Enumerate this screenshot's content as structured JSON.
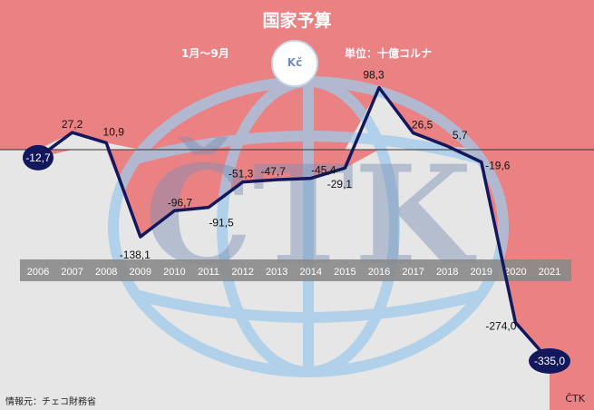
{
  "header": {
    "title": "国家予算",
    "period": "1月～9月",
    "unit": "単位：十億コルナ",
    "coin_symbol": "Kč"
  },
  "footer": {
    "source": "情報元：チェコ財務省",
    "credit": "ČTK"
  },
  "watermark": "ČTK",
  "colors": {
    "positive_area": "#ea8284",
    "negative_area": "#e6e6e6",
    "line": "#13185c",
    "axis_band": "#8a8a8a",
    "globe": "#9ecbea"
  },
  "chart_data": {
    "type": "line",
    "title": "国家予算",
    "x": [
      "2006",
      "2007",
      "2008",
      "2009",
      "2010",
      "2011",
      "2012",
      "2013",
      "2014",
      "2015",
      "2016",
      "2017",
      "2018",
      "2019",
      "2020",
      "2021"
    ],
    "values": [
      -12.7,
      27.2,
      10.9,
      -138.1,
      -96.7,
      -91.5,
      -51.3,
      -47.7,
      -45.4,
      -29.1,
      98.3,
      26.5,
      5.7,
      -19.6,
      -274.0,
      -335.0
    ],
    "labels": [
      "-12,7",
      "27,2",
      "10,9",
      "-138,1",
      "-96,7",
      "-91,5",
      "-51,3",
      "-47,7",
      "-45,4",
      "-29,1",
      "98,3",
      "26,5",
      "5,7",
      "-19,6",
      "-274,0",
      "-335,0"
    ],
    "highlighted": [
      "2006",
      "2021"
    ],
    "grid": false
  }
}
